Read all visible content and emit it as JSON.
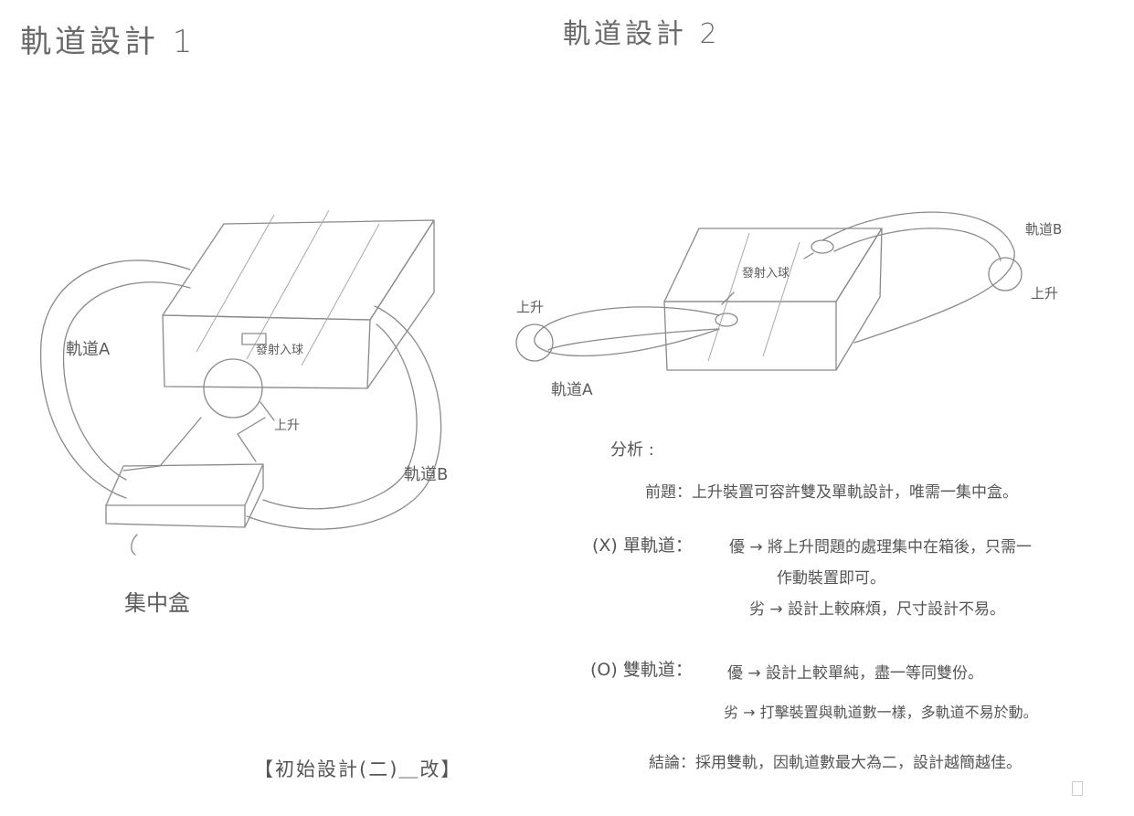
{
  "titles": {
    "design1": "軌道設計 1",
    "design2": "軌道設計 2"
  },
  "diagram1": {
    "track_a": "軌道A",
    "track_b": "軌道B",
    "motor_hole": "發射入球",
    "lift": "上升",
    "collector": "集中盒"
  },
  "diagram2": {
    "track_a": "軌道A",
    "track_b": "軌道B",
    "lift_left": "上升",
    "lift_right": "上升",
    "launch": "發射入球"
  },
  "analysis": {
    "heading": "分析 :",
    "premise": "前題：上升裝置可容許雙及單軌設計，唯需一集中盒。",
    "single_track_label": "(X) 單軌道：",
    "single_pro_1": "優 → 將上升問題的處理集中在箱後，只需一",
    "single_pro_2": "作動裝置即可。",
    "single_con": "劣 → 設計上較麻煩，尺寸設計不易。",
    "double_track_label": "(O) 雙軌道：",
    "double_pro": "優 → 設計上較單純，盡一等同雙份。",
    "double_con": "劣 → 打擊裝置與軌道數一樣，多軌道不易於動。",
    "conclusion": "結論：採用雙軌，因軌道數最大為二，設計越簡越佳。"
  },
  "footer": "【初始設計(二)＿改】"
}
